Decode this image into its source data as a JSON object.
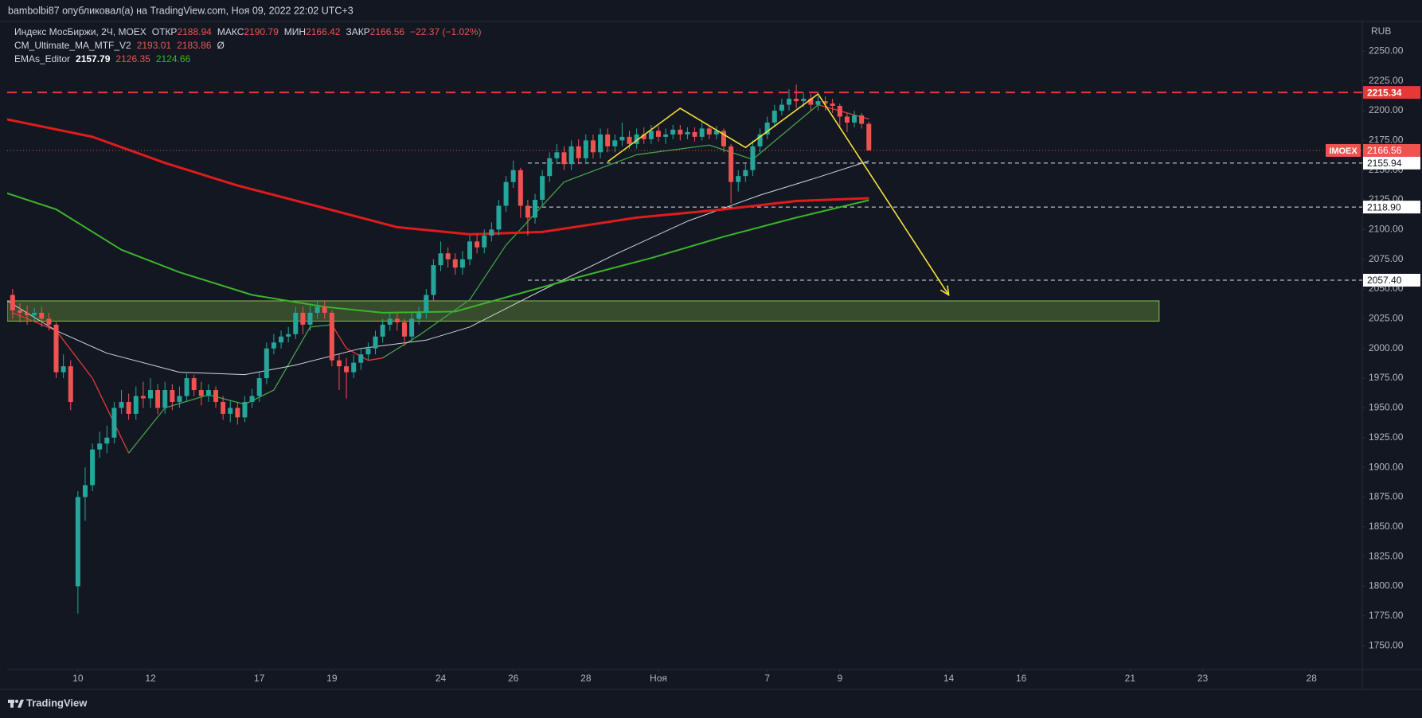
{
  "chart_data": {
    "type": "candlestick",
    "header": "bambolbi87 опубликовал(а) на TradingView.com, Ноя 09, 2022 22:02 UTC+3",
    "symbol": "Индекс МосБиржи, 2Ч, MOEX",
    "ohlc_labels": [
      "ОТКР",
      "МАКС",
      "МИН",
      "ЗАКР"
    ],
    "change": "−22.37 (−1.02%)",
    "currency": "RUB",
    "ticker": "IMOEX",
    "brand": "TradingView",
    "up_color": "#26a69a",
    "down_color": "#ef5350",
    "x": [
      1,
      2,
      3,
      4,
      5,
      6,
      7,
      8,
      9,
      10,
      11,
      12,
      13,
      14,
      15,
      16,
      17,
      18,
      19,
      20,
      21,
      22,
      23,
      24,
      25,
      26,
      27,
      28,
      29,
      30,
      31,
      32,
      33,
      34,
      35,
      36,
      37,
      38,
      39,
      40,
      41,
      42,
      43,
      44,
      45,
      46,
      47,
      48,
      49,
      50,
      51,
      52,
      53,
      54,
      55,
      56,
      57,
      58,
      59,
      60,
      61,
      62,
      63,
      64,
      65,
      66,
      67,
      68,
      69,
      70,
      71,
      72,
      73,
      74,
      75,
      76,
      77,
      78,
      79,
      80,
      81,
      82,
      83,
      84,
      85,
      86,
      87,
      88,
      89,
      90,
      91,
      92,
      93,
      94,
      95,
      96,
      97,
      98,
      99,
      100,
      101,
      102,
      103,
      104,
      105,
      106,
      107,
      108,
      109,
      110,
      111,
      112,
      113,
      114,
      115,
      116,
      117,
      118,
      119
    ],
    "open": [
      2045,
      2032,
      2030,
      2028,
      2030,
      2025,
      2020,
      1980,
      1985,
      1800,
      1875,
      1885,
      1915,
      1920,
      1925,
      1950,
      1955,
      1945,
      1960,
      1958,
      1965,
      1950,
      1965,
      1955,
      1960,
      1975,
      1965,
      1960,
      1965,
      1955,
      1945,
      1950,
      1942,
      1955,
      1960,
      1975,
      2000,
      2005,
      2010,
      2012,
      2030,
      2020,
      2030,
      2035,
      2030,
      1990,
      1985,
      1980,
      1988,
      1995,
      2000,
      2010,
      2020,
      2025,
      2022,
      2010,
      2025,
      2030,
      2045,
      2070,
      2080,
      2075,
      2068,
      2075,
      2090,
      2085,
      2095,
      2100,
      2120,
      2140,
      2150,
      2120,
      2110,
      2125,
      2145,
      2160,
      2165,
      2155,
      2170,
      2160,
      2175,
      2165,
      2180,
      2170,
      2175,
      2178,
      2172,
      2180,
      2176,
      2183,
      2178,
      2180,
      2184,
      2180,
      2182,
      2178,
      2185,
      2180,
      2183,
      2170,
      2140,
      2145,
      2150,
      2170,
      2180,
      2190,
      2200,
      2205,
      2210,
      2208,
      2210,
      2205,
      2208,
      2206,
      2204,
      2195,
      2190,
      2196,
      2188.94
    ],
    "high": [
      2050,
      2038,
      2036,
      2034,
      2035,
      2030,
      2022,
      1995,
      1990,
      1880,
      1900,
      1920,
      1930,
      1935,
      1955,
      1965,
      1962,
      1968,
      1972,
      1975,
      1970,
      1972,
      1970,
      1968,
      1980,
      1978,
      1972,
      1970,
      1968,
      1960,
      1956,
      1955,
      1960,
      1966,
      1980,
      2005,
      2012,
      2015,
      2018,
      2035,
      2035,
      2036,
      2040,
      2040,
      2032,
      1995,
      1992,
      1995,
      2000,
      2005,
      2015,
      2025,
      2030,
      2030,
      2025,
      2030,
      2035,
      2050,
      2075,
      2090,
      2085,
      2080,
      2082,
      2095,
      2096,
      2100,
      2106,
      2125,
      2145,
      2158,
      2152,
      2125,
      2130,
      2150,
      2165,
      2172,
      2170,
      2175,
      2176,
      2180,
      2180,
      2185,
      2185,
      2180,
      2190,
      2183,
      2185,
      2186,
      2188,
      2187,
      2185,
      2188,
      2188,
      2186,
      2186,
      2190,
      2188,
      2187,
      2185,
      2172,
      2150,
      2156,
      2175,
      2185,
      2195,
      2205,
      2210,
      2218,
      2222,
      2215,
      2214,
      2212,
      2212,
      2210,
      2206,
      2198,
      2200,
      2198,
      2190.79
    ],
    "low": [
      2025,
      2022,
      2020,
      2022,
      2018,
      2015,
      1975,
      1975,
      1948,
      1777,
      1855,
      1880,
      1908,
      1912,
      1920,
      1945,
      1940,
      1940,
      1950,
      1950,
      1945,
      1945,
      1948,
      1950,
      1955,
      1960,
      1952,
      1955,
      1950,
      1940,
      1938,
      1936,
      1938,
      1950,
      1955,
      1970,
      1995,
      2000,
      2005,
      2008,
      2012,
      2015,
      2025,
      2025,
      1985,
      1965,
      1958,
      1975,
      1982,
      1990,
      1995,
      2005,
      2015,
      2015,
      2002,
      2005,
      2020,
      2025,
      2040,
      2065,
      2068,
      2062,
      2062,
      2070,
      2080,
      2080,
      2090,
      2095,
      2115,
      2135,
      2110,
      2095,
      2105,
      2120,
      2140,
      2155,
      2150,
      2150,
      2155,
      2155,
      2160,
      2160,
      2165,
      2165,
      2170,
      2168,
      2168,
      2172,
      2172,
      2174,
      2172,
      2176,
      2175,
      2176,
      2174,
      2175,
      2176,
      2176,
      2165,
      2122,
      2132,
      2140,
      2145,
      2165,
      2176,
      2186,
      2196,
      2200,
      2202,
      2203,
      2200,
      2200,
      2200,
      2198,
      2185,
      2182,
      2186,
      2185,
      2166.42
    ],
    "close": [
      2032,
      2030,
      2028,
      2030,
      2025,
      2020,
      1980,
      1985,
      1955,
      1875,
      1885,
      1915,
      1920,
      1925,
      1950,
      1955,
      1945,
      1960,
      1958,
      1965,
      1950,
      1965,
      1955,
      1960,
      1975,
      1965,
      1960,
      1965,
      1955,
      1945,
      1950,
      1942,
      1955,
      1960,
      1975,
      2000,
      2005,
      2010,
      2012,
      2030,
      2020,
      2030,
      2035,
      2030,
      1990,
      1985,
      1980,
      1988,
      1995,
      2000,
      2010,
      2020,
      2025,
      2022,
      2010,
      2025,
      2030,
      2045,
      2070,
      2080,
      2075,
      2068,
      2075,
      2090,
      2085,
      2095,
      2100,
      2120,
      2140,
      2150,
      2120,
      2110,
      2125,
      2145,
      2160,
      2165,
      2155,
      2170,
      2160,
      2175,
      2165,
      2180,
      2170,
      2175,
      2178,
      2172,
      2180,
      2176,
      2183,
      2178,
      2180,
      2184,
      2180,
      2182,
      2178,
      2185,
      2180,
      2183,
      2170,
      2140,
      2145,
      2150,
      2170,
      2180,
      2190,
      2200,
      2205,
      2210,
      2208,
      2210,
      2205,
      2208,
      2206,
      2204,
      2195,
      2190,
      2196,
      2188.94,
      2166.56
    ],
    "xlim": [
      0.25,
      187
    ],
    "xticks": [
      {
        "value": 10,
        "label": "10"
      },
      {
        "value": 20,
        "label": "12"
      },
      {
        "value": 35,
        "label": "17"
      },
      {
        "value": 45,
        "label": "19"
      },
      {
        "value": 60,
        "label": "24"
      },
      {
        "value": 70,
        "label": "26"
      },
      {
        "value": 80,
        "label": "28"
      },
      {
        "value": 90,
        "label": "Ноя"
      },
      {
        "value": 105,
        "label": "7"
      },
      {
        "value": 115,
        "label": "9"
      },
      {
        "value": 130,
        "label": "14"
      },
      {
        "value": 140,
        "label": "16"
      },
      {
        "value": 155,
        "label": "21"
      },
      {
        "value": 165,
        "label": "23"
      },
      {
        "value": 180,
        "label": "28"
      }
    ],
    "ylim": [
      1730,
      2275
    ],
    "yticks": [
      {
        "value": 1750,
        "label": "1750.00"
      },
      {
        "value": 1775,
        "label": "1775.00"
      },
      {
        "value": 1800,
        "label": "1800.00"
      },
      {
        "value": 1825,
        "label": "1825.00"
      },
      {
        "value": 1850,
        "label": "1850.00"
      },
      {
        "value": 1875,
        "label": "1875.00"
      },
      {
        "value": 1900,
        "label": "1900.00"
      },
      {
        "value": 1925,
        "label": "1925.00"
      },
      {
        "value": 1950,
        "label": "1950.00"
      },
      {
        "value": 1975,
        "label": "1975.00"
      },
      {
        "value": 2000,
        "label": "2000.00"
      },
      {
        "value": 2025,
        "label": "2025.00"
      },
      {
        "value": 2050,
        "label": "2050.00"
      },
      {
        "value": 2075,
        "label": "2075.00"
      },
      {
        "value": 2100,
        "label": "2100.00"
      },
      {
        "value": 2125,
        "label": "2125.00"
      },
      {
        "value": 2150,
        "label": "2150.00"
      },
      {
        "value": 2175,
        "label": "2175.00"
      },
      {
        "value": 2200,
        "label": "2200.00"
      },
      {
        "value": 2225,
        "label": "2225.00"
      },
      {
        "value": 2250,
        "label": "2250.00"
      }
    ],
    "grid": false,
    "indicators": [
      {
        "name": "CM_Ultimate_MA_MTF_V2",
        "readout": 2183.86,
        "flag": "Ø",
        "lines": [
          {
            "color": "#e53935",
            "width": 1.3,
            "x": [
              1,
              7,
              12,
              17
            ],
            "values": [
              2030,
              2015,
              1975,
              1912
            ]
          },
          {
            "color": "#43a047",
            "width": 1.3,
            "x": [
              17,
              22,
              28,
              33,
              37,
              42,
              45
            ],
            "values": [
              1912,
              1950,
              1961,
              1953,
              1965,
              2018,
              2020
            ]
          },
          {
            "color": "#e53935",
            "width": 1.3,
            "x": [
              45,
              47,
              50,
              52
            ],
            "values": [
              2020,
              2000,
              1990,
              1992
            ]
          },
          {
            "color": "#43a047",
            "width": 1.3,
            "x": [
              52,
              57,
              64,
              69,
              77,
              87,
              97,
              103,
              112
            ],
            "values": [
              1992,
              2011,
              2041,
              2087,
              2140,
              2163,
              2171,
              2159,
              2205
            ]
          },
          {
            "color": "#e53935",
            "width": 1.3,
            "x": [
              112,
              119
            ],
            "values": [
              2205,
              2193.01
            ]
          }
        ]
      },
      {
        "name": "EMAs_Editor",
        "lines": [
          {
            "color": "#d1d4dc",
            "width": 1,
            "x": [
              0,
              7,
              14,
              24,
              33,
              40,
              49,
              58,
              64,
              74,
              84,
              94,
              104,
              112,
              119
            ],
            "values": [
              2041,
              2015,
              1996,
              1980,
              1978,
              1986,
              2000,
              2007,
              2018,
              2049,
              2079,
              2107,
              2129,
              2144,
              2157.79
            ]
          },
          {
            "color": "#e01b1b",
            "width": 3,
            "x": [
              0,
              12,
              22,
              32,
              44,
              54,
              64,
              74,
              87,
              99,
              109,
              119
            ],
            "values": [
              2193,
              2178,
              2156,
              2137,
              2118,
              2102,
              2096,
              2098,
              2110,
              2117,
              2124,
              2126.35
            ]
          },
          {
            "color": "#3bb52b",
            "width": 2,
            "x": [
              0,
              7,
              16,
              24,
              34,
              44,
              52,
              62,
              69,
              79,
              89,
              99,
              109,
              119
            ],
            "values": [
              2131,
              2117,
              2083,
              2064,
              2045,
              2035,
              2030,
              2031,
              2043,
              2060,
              2076,
              2094,
              2110,
              2124.66
            ]
          }
        ]
      }
    ],
    "resistance": 2215.34,
    "resistance_color": "#e53935",
    "levels": [
      2155.94,
      {
        "value": 2118.9,
        "label": "2118.90"
      },
      {
        "value": 2057.4,
        "label": "2057.40"
      }
    ],
    "levels_from": 72,
    "zone": {
      "x": [
        0.25,
        159
      ],
      "y": [
        2023,
        2040
      ],
      "color": "#8bc34a"
    },
    "pattern": {
      "x": [
        83,
        93,
        102,
        112,
        130
      ],
      "values": [
        2157,
        2202,
        2169,
        2214,
        2045
      ],
      "color": "#f5e13a"
    }
  }
}
